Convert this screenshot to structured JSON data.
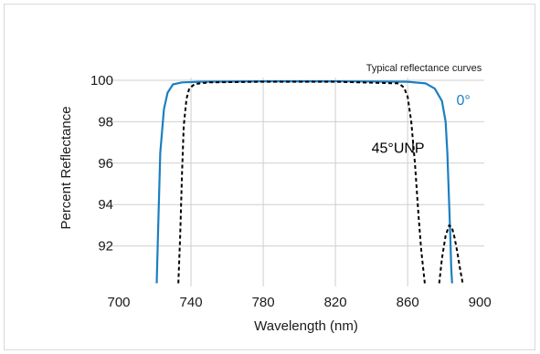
{
  "chart_data": {
    "type": "line",
    "annotation": "Typical reflectance curves",
    "xlabel": "Wavelength (nm)",
    "ylabel": "Percent Reflectance",
    "xlim": [
      700,
      900
    ],
    "ylim": [
      90.2,
      100.2
    ],
    "xticks": [
      700,
      740,
      780,
      820,
      860,
      900
    ],
    "yticks": [
      92,
      94,
      96,
      98,
      100
    ],
    "grid": true,
    "series": [
      {
        "name": "0°",
        "color": "#1b7fc1",
        "dash": "solid",
        "x": [
          721,
          722,
          723,
          725,
          727,
          730,
          735,
          745,
          780,
          820,
          860,
          870,
          875,
          879,
          881,
          882,
          883,
          883.6,
          884.1,
          884.6
        ],
        "y": [
          90.2,
          93.5,
          96.5,
          98.6,
          99.4,
          99.8,
          99.9,
          99.93,
          99.95,
          99.95,
          99.93,
          99.85,
          99.6,
          99.0,
          98.0,
          96.5,
          94.0,
          92.5,
          91.0,
          90.2
        ]
      },
      {
        "name": "45°UNP",
        "color": "#000000",
        "dash": "dashed",
        "x": [
          733,
          734,
          735,
          736,
          737.5,
          739,
          742,
          750,
          780,
          820,
          855,
          858,
          860,
          862,
          864,
          866,
          867.5,
          869.5
        ],
        "y": [
          90.2,
          92.5,
          95.5,
          97.8,
          99.1,
          99.6,
          99.82,
          99.9,
          99.93,
          99.93,
          99.85,
          99.65,
          99.2,
          98.0,
          96.0,
          93.5,
          91.8,
          90.2
        ]
      },
      {
        "name": "",
        "color": "#000000",
        "dash": "dashed",
        "x": [
          877.5,
          879,
          881,
          883,
          884.5,
          886,
          887.5,
          889,
          890.5
        ],
        "y": [
          90.2,
          91.4,
          92.5,
          93.0,
          92.9,
          92.4,
          91.7,
          90.9,
          90.2
        ]
      }
    ],
    "labels": [
      {
        "text": "0°",
        "series": 0,
        "color": "#1b7fc1",
        "x": 887,
        "y": 98.8
      },
      {
        "text": "45°UNP",
        "series": 1,
        "color": "#000000",
        "x": 840,
        "y": 96.5
      }
    ]
  }
}
